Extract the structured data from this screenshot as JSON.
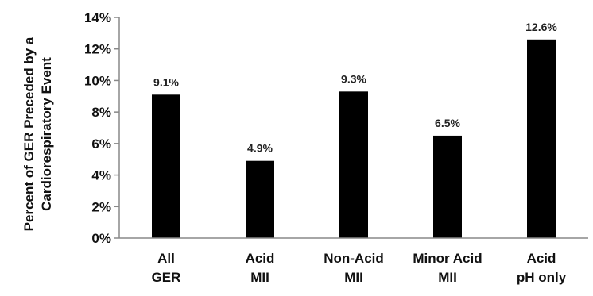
{
  "chart_data": {
    "type": "bar",
    "categories": [
      [
        "All",
        "GER"
      ],
      [
        "Acid",
        "MII"
      ],
      [
        "Non-Acid",
        "MII"
      ],
      [
        "Minor Acid",
        "MII"
      ],
      [
        "Acid",
        "pH only"
      ]
    ],
    "values": [
      9.1,
      4.9,
      9.3,
      6.5,
      12.6
    ],
    "data_labels": [
      "9.1%",
      "4.9%",
      "9.3%",
      "6.5%",
      "12.6%"
    ],
    "ylabel_lines": [
      "Percent of GER Preceded by a",
      "Cardiorespiratory Event"
    ],
    "ylim": [
      0,
      14
    ],
    "yticks": [
      0,
      2,
      4,
      6,
      8,
      10,
      12,
      14
    ],
    "ytick_labels": [
      "0%",
      "2%",
      "4%",
      "6%",
      "8%",
      "10%",
      "12%",
      "14%"
    ],
    "bar_color": "#000000",
    "grid": false,
    "legend": "none"
  }
}
